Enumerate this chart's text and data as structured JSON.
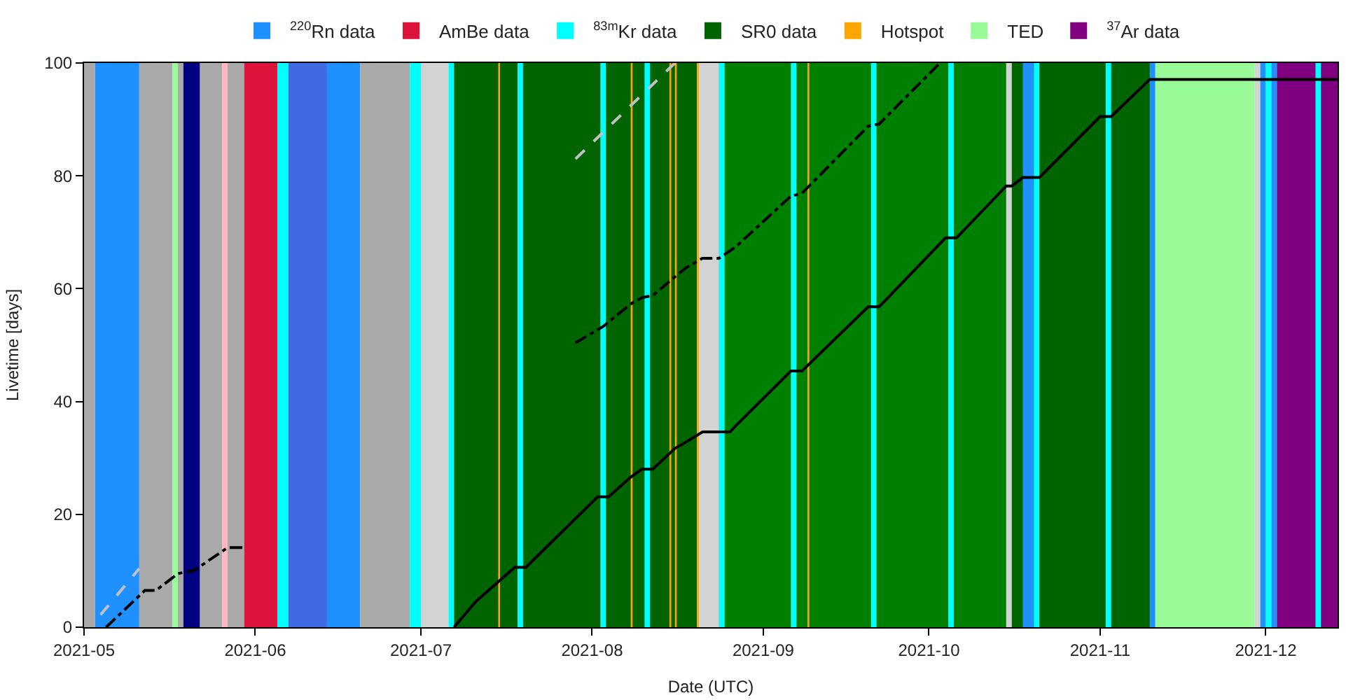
{
  "chart_data": {
    "type": "line",
    "xlabel": "Date (UTC)",
    "ylabel": "Livetime [days]",
    "xlim": [
      "2021-05-01",
      "2021-12-14"
    ],
    "ylim": [
      0,
      100
    ],
    "xticks": [
      {
        "value": "2021-05-01",
        "label": "2021-05"
      },
      {
        "value": "2021-06-01",
        "label": "2021-06"
      },
      {
        "value": "2021-07-01",
        "label": "2021-07"
      },
      {
        "value": "2021-08-01",
        "label": "2021-08"
      },
      {
        "value": "2021-09-01",
        "label": "2021-09"
      },
      {
        "value": "2021-10-01",
        "label": "2021-10"
      },
      {
        "value": "2021-11-01",
        "label": "2021-11"
      },
      {
        "value": "2021-12-01",
        "label": "2021-12"
      }
    ],
    "yticks": [
      0,
      20,
      40,
      60,
      80,
      100
    ],
    "grid": false,
    "legend": "top",
    "marker": "none",
    "series": [
      {
        "color": "#000000",
        "line_style": "solid",
        "x": [
          "2021-07-07",
          "2021-07-11",
          "2021-07-18",
          "2021-07-20",
          "2021-08-02",
          "2021-08-04",
          "2021-08-08",
          "2021-08-10",
          "2021-08-12",
          "2021-08-16",
          "2021-08-18",
          "2021-08-21",
          "2021-08-26",
          "2021-08-27",
          "2021-09-06",
          "2021-09-08",
          "2021-09-20",
          "2021-09-22",
          "2021-10-04",
          "2021-10-06",
          "2021-10-15",
          "2021-10-16",
          "2021-10-18",
          "2021-10-21",
          "2021-11-01",
          "2021-11-03",
          "2021-11-10",
          "2021-12-14"
        ],
        "values": [
          0,
          4.6,
          10.6,
          10.6,
          23.1,
          23.1,
          26.6,
          28,
          28,
          31.7,
          32.8,
          34.6,
          34.6,
          35.7,
          45.4,
          45.4,
          56.8,
          56.8,
          69,
          69,
          78.2,
          78.2,
          79.7,
          79.7,
          90.5,
          90.5,
          97.1,
          97.1
        ]
      },
      {
        "color": "#000000",
        "line_style": "dashdot",
        "x": [
          "2021-05-05",
          "2021-05-12",
          "2021-05-14",
          "2021-05-18",
          "2021-05-21",
          "2021-05-27",
          "2021-05-30",
          "2021-06-15",
          "2021-07-29",
          "2021-08-03",
          "2021-08-08",
          "2021-08-10",
          "2021-08-12",
          "2021-08-16",
          "2021-08-18",
          "2021-08-21",
          "2021-08-24",
          "2021-08-27",
          "2021-09-06",
          "2021-09-08",
          "2021-09-20",
          "2021-09-22",
          "2021-10-03"
        ],
        "values": [
          0,
          6.5,
          6.5,
          9.5,
          10.1,
          14.1,
          14.1,
          null,
          50.4,
          53.3,
          57.3,
          58.4,
          58.8,
          62.1,
          63.7,
          65.4,
          65.4,
          67.4,
          76.4,
          76.9,
          88.8,
          89.2,
          100
        ]
      },
      {
        "color": "#c0c0c0",
        "line_style": "dashed",
        "x": [
          "2021-05-04",
          "2021-05-11",
          "2021-06-15",
          "2021-07-29",
          "2021-08-16"
        ],
        "values": [
          2.2,
          10.4,
          null,
          83,
          100
        ]
      }
    ],
    "bands": [
      {
        "axis": "x",
        "from": "2021-05-01",
        "to": "2021-05-03",
        "color": "#a9a9a9"
      },
      {
        "axis": "x",
        "from": "2021-05-03",
        "to": "2021-05-11",
        "color": "#1e90ff",
        "label": "$^{220}$Rn data"
      },
      {
        "axis": "x",
        "from": "2021-05-11",
        "to": "2021-05-17",
        "color": "#a9a9a9"
      },
      {
        "axis": "x",
        "from": "2021-05-17",
        "to": "2021-05-18",
        "color": "#98fb98"
      },
      {
        "axis": "x",
        "from": "2021-05-18",
        "to": "2021-05-19",
        "color": "#a9a9a9"
      },
      {
        "axis": "x",
        "from": "2021-05-19",
        "to": "2021-05-22",
        "color": "#000080"
      },
      {
        "axis": "x",
        "from": "2021-05-22",
        "to": "2021-05-26",
        "color": "#a9a9a9"
      },
      {
        "axis": "x",
        "from": "2021-05-26",
        "to": "2021-05-27",
        "color": "#ffb6c1"
      },
      {
        "axis": "x",
        "from": "2021-05-27",
        "to": "2021-05-30",
        "color": "#a9a9a9"
      },
      {
        "axis": "x",
        "from": "2021-05-30",
        "to": "2021-06-05",
        "color": "#dc143c",
        "label": "AmBe data"
      },
      {
        "axis": "x",
        "from": "2021-06-05",
        "to": "2021-06-07",
        "color": "#00ffff",
        "label": "$^{83m}$Kr data"
      },
      {
        "axis": "x",
        "from": "2021-06-07",
        "to": "2021-06-14",
        "color": "#4169e1"
      },
      {
        "axis": "x",
        "from": "2021-06-14",
        "to": "2021-06-20",
        "color": "#1e90ff"
      },
      {
        "axis": "x",
        "from": "2021-06-20",
        "to": "2021-06-29",
        "color": "#a9a9a9"
      },
      {
        "axis": "x",
        "from": "2021-06-29",
        "to": "2021-07-01",
        "color": "#00ffff"
      },
      {
        "axis": "x",
        "from": "2021-07-01",
        "to": "2021-07-06",
        "color": "#d3d3d3"
      },
      {
        "axis": "x",
        "from": "2021-07-06",
        "to": "2021-07-07",
        "color": "#00ffff"
      },
      {
        "axis": "x",
        "from": "2021-07-07",
        "to": "2021-08-20",
        "color": "#006400",
        "label": "SR0 data"
      },
      {
        "axis": "x",
        "from": "2021-08-20",
        "to": "2021-08-24",
        "color": "#d3d3d3"
      },
      {
        "axis": "x",
        "from": "2021-08-24",
        "to": "2021-10-15",
        "color": "#008000"
      },
      {
        "axis": "x",
        "from": "2021-10-15",
        "to": "2021-10-16",
        "color": "#d3d3d3"
      },
      {
        "axis": "x",
        "from": "2021-10-16",
        "to": "2021-11-10",
        "color": "#006400"
      },
      {
        "axis": "x",
        "from": "2021-07-15",
        "to": "2021-07-15T08:00",
        "color": "#ffa500",
        "label": "Hotspot"
      },
      {
        "axis": "x",
        "from": "2021-08-08",
        "to": "2021-08-08T08:00",
        "color": "#ffa500"
      },
      {
        "axis": "x",
        "from": "2021-08-15",
        "to": "2021-08-15T08:00",
        "color": "#ffa500"
      },
      {
        "axis": "x",
        "from": "2021-08-16",
        "to": "2021-08-16T08:00",
        "color": "#ffa500"
      },
      {
        "axis": "x",
        "from": "2021-08-20",
        "to": "2021-08-20T08:00",
        "color": "#ffa500"
      },
      {
        "axis": "x",
        "from": "2021-09-09",
        "to": "2021-09-09T08:00",
        "color": "#ffa500"
      },
      {
        "axis": "x",
        "from": "2021-07-18T12:00",
        "to": "2021-07-19T12:00",
        "color": "#00ffff"
      },
      {
        "axis": "x",
        "from": "2021-08-02T12:00",
        "to": "2021-08-03T12:00",
        "color": "#00ffff"
      },
      {
        "axis": "x",
        "from": "2021-08-10T12:00",
        "to": "2021-08-11T12:00",
        "color": "#00ffff"
      },
      {
        "axis": "x",
        "from": "2021-08-24",
        "to": "2021-08-25",
        "color": "#00ffff"
      },
      {
        "axis": "x",
        "from": "2021-09-06",
        "to": "2021-09-07",
        "color": "#00ffff"
      },
      {
        "axis": "x",
        "from": "2021-09-20T12:00",
        "to": "2021-09-21T12:00",
        "color": "#00ffff"
      },
      {
        "axis": "x",
        "from": "2021-10-04T12:00",
        "to": "2021-10-05T12:00",
        "color": "#00ffff"
      },
      {
        "axis": "x",
        "from": "2021-10-18",
        "to": "2021-10-20",
        "color": "#1e90ff"
      },
      {
        "axis": "x",
        "from": "2021-10-20",
        "to": "2021-10-21",
        "color": "#00ffff"
      },
      {
        "axis": "x",
        "from": "2021-11-02",
        "to": "2021-11-03",
        "color": "#00ffff"
      },
      {
        "axis": "x",
        "from": "2021-11-10",
        "to": "2021-11-11",
        "color": "#1e90ff"
      },
      {
        "axis": "x",
        "from": "2021-11-11",
        "to": "2021-11-29",
        "color": "#98fb98",
        "label": "TED"
      },
      {
        "axis": "x",
        "from": "2021-11-29",
        "to": "2021-11-30",
        "color": "#d3d3d3"
      },
      {
        "axis": "x",
        "from": "2021-11-30",
        "to": "2021-12-01",
        "color": "#1e90ff"
      },
      {
        "axis": "x",
        "from": "2021-12-01",
        "to": "2021-12-02",
        "color": "#00ffff"
      },
      {
        "axis": "x",
        "from": "2021-12-02",
        "to": "2021-12-03",
        "color": "#1e90ff"
      },
      {
        "axis": "x",
        "from": "2021-12-03",
        "to": "2021-12-14",
        "color": "#800080",
        "label": "$^{37}$Ar data"
      },
      {
        "axis": "x",
        "from": "2021-12-10",
        "to": "2021-12-11",
        "color": "#00ffff"
      }
    ]
  }
}
